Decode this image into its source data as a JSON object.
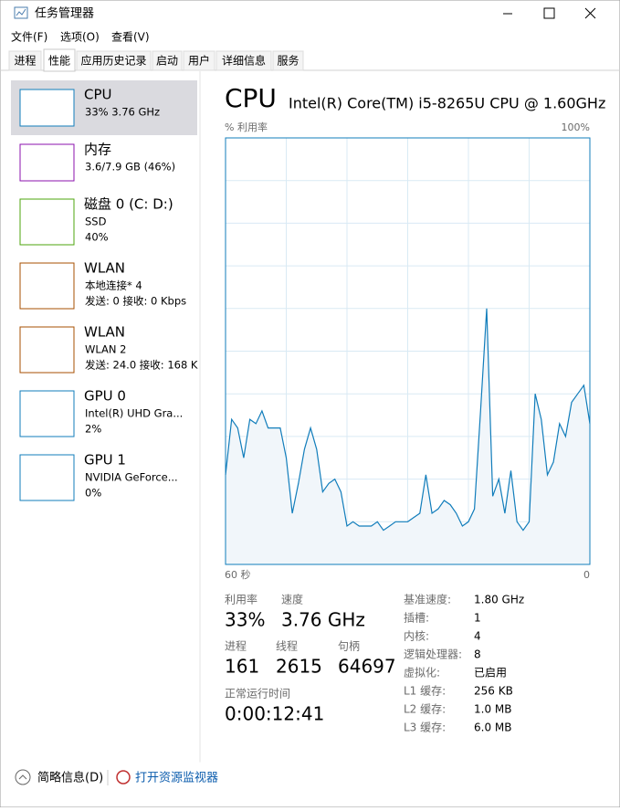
{
  "window": {
    "title": "任务管理器"
  },
  "menu": [
    "文件(F)",
    "选项(O)",
    "查看(V)"
  ],
  "tabs": [
    "进程",
    "性能",
    "应用历史记录",
    "启动",
    "用户",
    "详细信息",
    "服务"
  ],
  "sidebar": [
    {
      "name": "CPU",
      "lines": [
        "33% 3.76 GHz"
      ]
    },
    {
      "name": "内存",
      "lines": [
        "3.6/7.9 GB (46%)"
      ]
    },
    {
      "name": "磁盘 0 (C: D:)",
      "lines": [
        "SSD",
        "40%"
      ]
    },
    {
      "name": "WLAN",
      "lines": [
        "本地连接* 4",
        "发送: 0 接收: 0 Kbps"
      ]
    },
    {
      "name": "WLAN",
      "lines": [
        "WLAN 2",
        "发送: 24.0 接收: 168 K"
      ]
    },
    {
      "name": "GPU 0",
      "lines": [
        "Intel(R) UHD Gra...",
        "2%"
      ]
    },
    {
      "name": "GPU 1",
      "lines": [
        "NVIDIA GeForce...",
        "0%"
      ]
    }
  ],
  "cpu": {
    "title": "CPU",
    "model": "Intel(R) Core(TM) i5-8265U CPU @ 1.60GHz",
    "graph": {
      "y_label": "% 利用率",
      "y_max_label": "100%",
      "x_start_label": "60 秒",
      "x_end_label": "0",
      "ylim": [
        0,
        100
      ],
      "values": [
        21,
        34,
        32,
        25,
        34,
        33,
        36,
        32,
        32,
        32,
        25,
        12,
        19,
        27,
        32,
        27,
        17,
        19,
        20,
        17,
        9,
        10,
        9,
        9,
        9,
        10,
        8,
        9,
        10,
        10,
        10,
        11,
        12,
        21,
        12,
        13,
        15,
        14,
        12,
        9,
        10,
        13,
        36,
        60,
        16,
        20,
        12,
        22,
        10,
        8,
        10,
        40,
        34,
        21,
        24,
        33,
        30,
        38,
        40,
        42,
        33
      ]
    },
    "stats": [
      {
        "label": "利用率",
        "value": "33%"
      },
      {
        "label": "速度",
        "value": "3.76 GHz"
      },
      {
        "label": "进程",
        "value": "161"
      },
      {
        "label": "线程",
        "value": "2615"
      },
      {
        "label": "句柄",
        "value": "64697"
      },
      {
        "label": "正常运行时间",
        "value": "0:00:12:41"
      }
    ],
    "specs": [
      {
        "label": "基准速度:",
        "value": "1.80 GHz"
      },
      {
        "label": "插槽:",
        "value": "1"
      },
      {
        "label": "内核:",
        "value": "4"
      },
      {
        "label": "逻辑处理器:",
        "value": "8"
      },
      {
        "label": "虚拟化:",
        "value": "已启用"
      },
      {
        "label": "L1 缓存:",
        "value": "256 KB"
      },
      {
        "label": "L2 缓存:",
        "value": "1.0 MB"
      },
      {
        "label": "L3 缓存:",
        "value": "6.0 MB"
      }
    ]
  },
  "footer": {
    "fewer_details": "简略信息(D)",
    "resource_monitor": "打开资源监视器"
  }
}
